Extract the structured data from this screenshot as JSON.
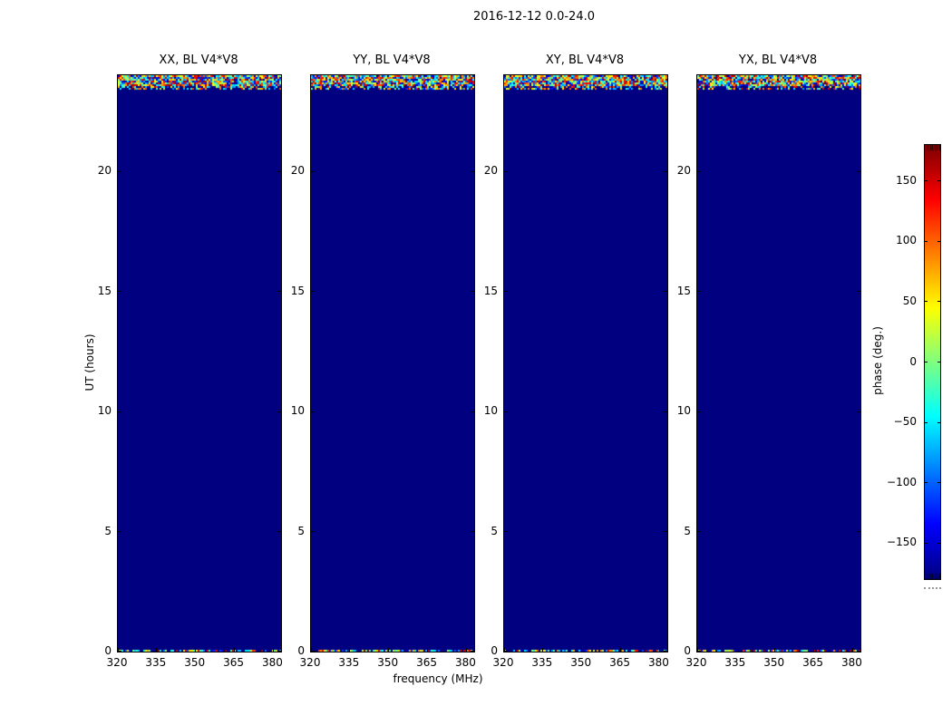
{
  "figure_title": "2016-12-12 0.0-24.0",
  "chart_data": {
    "type": "heatmap",
    "title": "2016-12-12 0.0-24.0",
    "xlabel": "frequency (MHz)",
    "ylabel": "UT (hours)",
    "panels": [
      {
        "title": "XX, BL V4*V8"
      },
      {
        "title": "YY, BL V4*V8"
      },
      {
        "title": "XY, BL V4*V8"
      },
      {
        "title": "YX, BL V4*V8"
      }
    ],
    "x_ticks": {
      "values": [
        320,
        335,
        350,
        365,
        380
      ],
      "labels": [
        "320",
        "335",
        "350",
        "365",
        "380"
      ]
    },
    "y_ticks": {
      "values": [
        0,
        5,
        10,
        15,
        20
      ],
      "labels": [
        "0",
        "5",
        "10",
        "15",
        "20"
      ]
    },
    "x_range": [
      320,
      383
    ],
    "y_range": [
      0,
      24
    ],
    "value_range": [
      -180,
      180
    ],
    "colormap": "jet",
    "background_value_deg": -180,
    "noise_bands": [
      {
        "y_from_hours": 23.45,
        "y_to_hours": 24.0,
        "description": "dense random phase noise band across all frequencies at top of each panel"
      },
      {
        "y_from_hours": 0.0,
        "y_to_hours": 0.08,
        "description": "thin random phase noise line across all frequencies at bottom of each panel"
      }
    ],
    "colorbar": {
      "label": "phase (deg.)",
      "tick_values": [
        150,
        100,
        50,
        0,
        -50,
        -100,
        -150
      ],
      "tick_labels": [
        "150",
        "100",
        "50",
        "0",
        "−50",
        "−100",
        "−150"
      ],
      "range": [
        -180,
        180
      ]
    },
    "grid": false,
    "legend": null
  },
  "colors": {
    "figure_background": "#ffffff",
    "panel_background": "#000080",
    "axis_color": "#000000",
    "text_color": "#000000"
  }
}
